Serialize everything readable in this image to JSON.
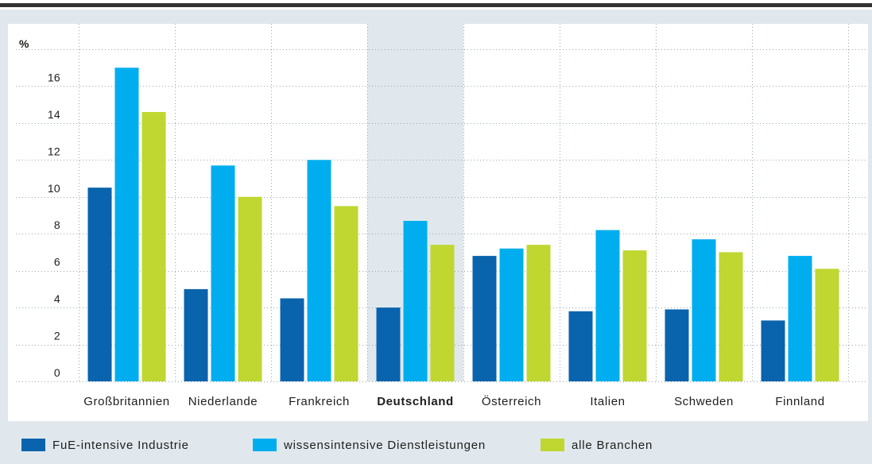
{
  "colors": {
    "top_rule": "#333333",
    "panel": "#e1e8ed",
    "plot": "#ffffff",
    "highlight": "#e1e8ed",
    "text": "#1d1d1b"
  },
  "chart_data": {
    "type": "bar",
    "title": "",
    "xlabel": "",
    "ylabel": "%",
    "ylim": [
      0,
      18
    ],
    "yticks": [
      0,
      2,
      4,
      6,
      8,
      10,
      12,
      14,
      16
    ],
    "grid": true,
    "legend_position": "bottom",
    "highlight_category": "Deutschland",
    "categories": [
      "Großbritannien",
      "Niederlande",
      "Frankreich",
      "Deutschland",
      "Österreich",
      "Italien",
      "Schweden",
      "Finnland"
    ],
    "series": [
      {
        "name": "FuE-intensive Industrie",
        "color": "#0a63ad",
        "values": [
          10.5,
          5.0,
          4.5,
          4.0,
          6.8,
          3.8,
          3.9,
          3.3
        ]
      },
      {
        "name": "wissensintensive Dienstleistungen",
        "color": "#00aeef",
        "values": [
          17.0,
          11.7,
          12.0,
          8.7,
          7.2,
          8.2,
          7.7,
          6.8
        ]
      },
      {
        "name": "alle Branchen",
        "color": "#bfd730",
        "values": [
          14.6,
          10.0,
          9.5,
          7.4,
          7.4,
          7.1,
          7.0,
          6.1
        ]
      }
    ]
  }
}
